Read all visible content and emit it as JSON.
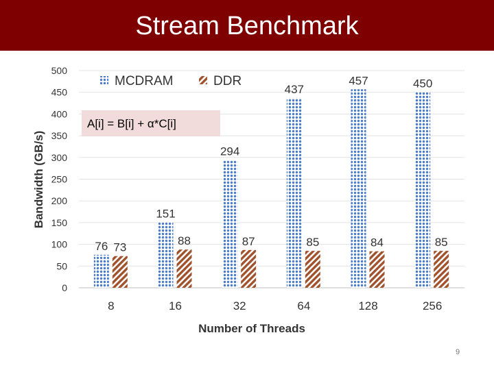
{
  "slide": {
    "title": "Stream Benchmark",
    "formula": "A[i] = B[i] + α*C[i]",
    "page_number": "9"
  },
  "colors": {
    "title_bar": "#7f0000",
    "mcdram": "#4a7cc9",
    "ddr": "#a0522d",
    "formula_bg": "#f2dcdb"
  },
  "chart_data": {
    "type": "bar",
    "categories": [
      "8",
      "16",
      "32",
      "64",
      "128",
      "256"
    ],
    "series": [
      {
        "name": "MCDRAM",
        "values": [
          76,
          151,
          294,
          437,
          457,
          450
        ]
      },
      {
        "name": "DDR",
        "values": [
          73,
          88,
          87,
          85,
          84,
          85
        ]
      }
    ],
    "xlabel": "Number of Threads",
    "ylabel": "Bandwidth (GB/s)",
    "ylim": [
      0,
      500
    ],
    "yticks": [
      0,
      50,
      100,
      150,
      200,
      250,
      300,
      350,
      400,
      450,
      500
    ],
    "grid": true,
    "legend": "top-left",
    "data_labels": true
  }
}
